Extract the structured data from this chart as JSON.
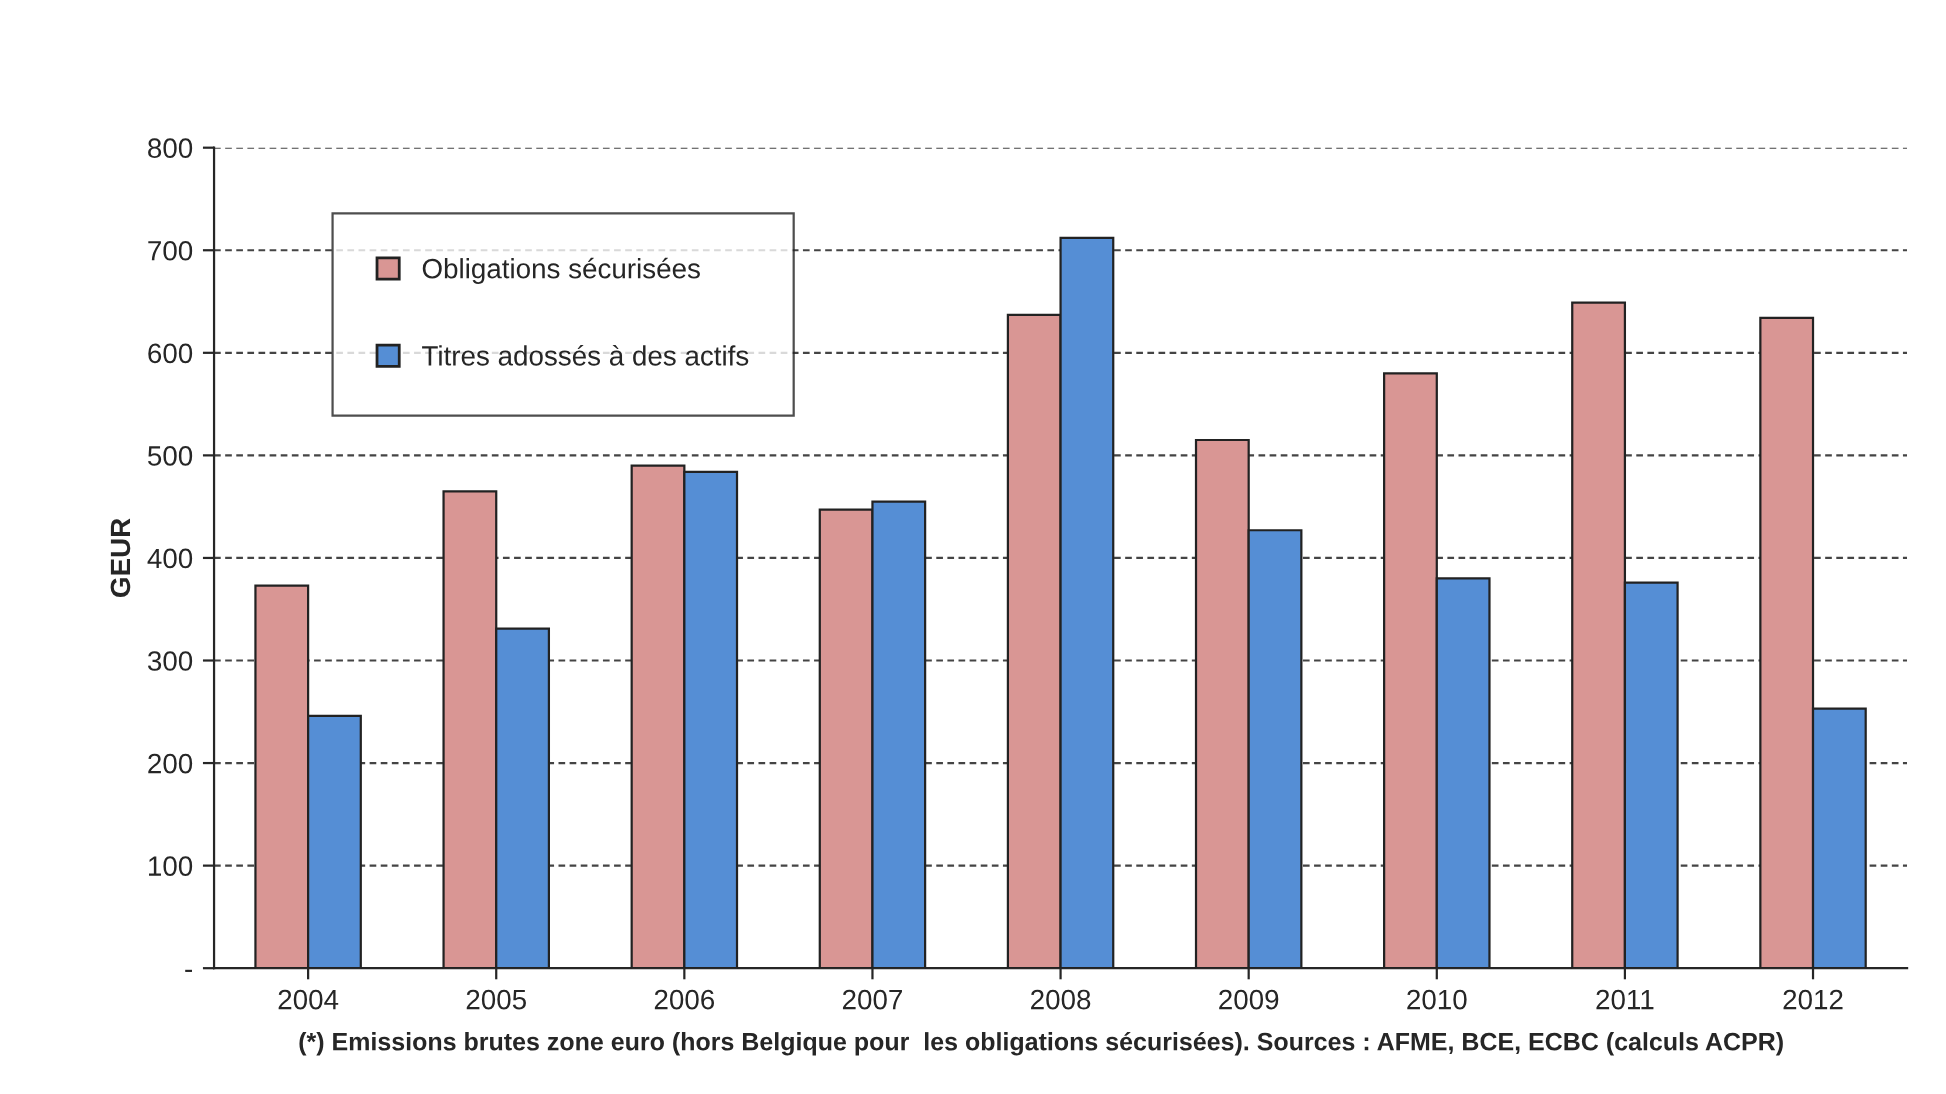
{
  "chart_data": {
    "type": "bar",
    "categories": [
      "2004",
      "2005",
      "2006",
      "2007",
      "2008",
      "2009",
      "2010",
      "2011",
      "2012"
    ],
    "ylabel": "GEUR",
    "series": [
      {
        "name": "Obligations sécurisées",
        "color": "#d99694",
        "values": [
          373,
          465,
          490,
          447,
          637,
          515,
          580,
          649,
          634
        ]
      },
      {
        "name": "Titres adossés à des actifs",
        "color": "#558ed5",
        "values": [
          246,
          331,
          484,
          455,
          712,
          427,
          380,
          376,
          253
        ]
      }
    ],
    "ylim": [
      0,
      800
    ],
    "yticks": [
      {
        "value": 0,
        "label": "-"
      },
      100,
      200,
      300,
      400,
      500,
      600,
      700,
      800
    ],
    "grid": "y",
    "legend": "top left",
    "annotations": [
      "(*) Emissions brutes zone euro (hors Belgique pour  les obligations sécurisées). Sources : AFME, BCE, ECBC (calculs ACPR)"
    ]
  }
}
